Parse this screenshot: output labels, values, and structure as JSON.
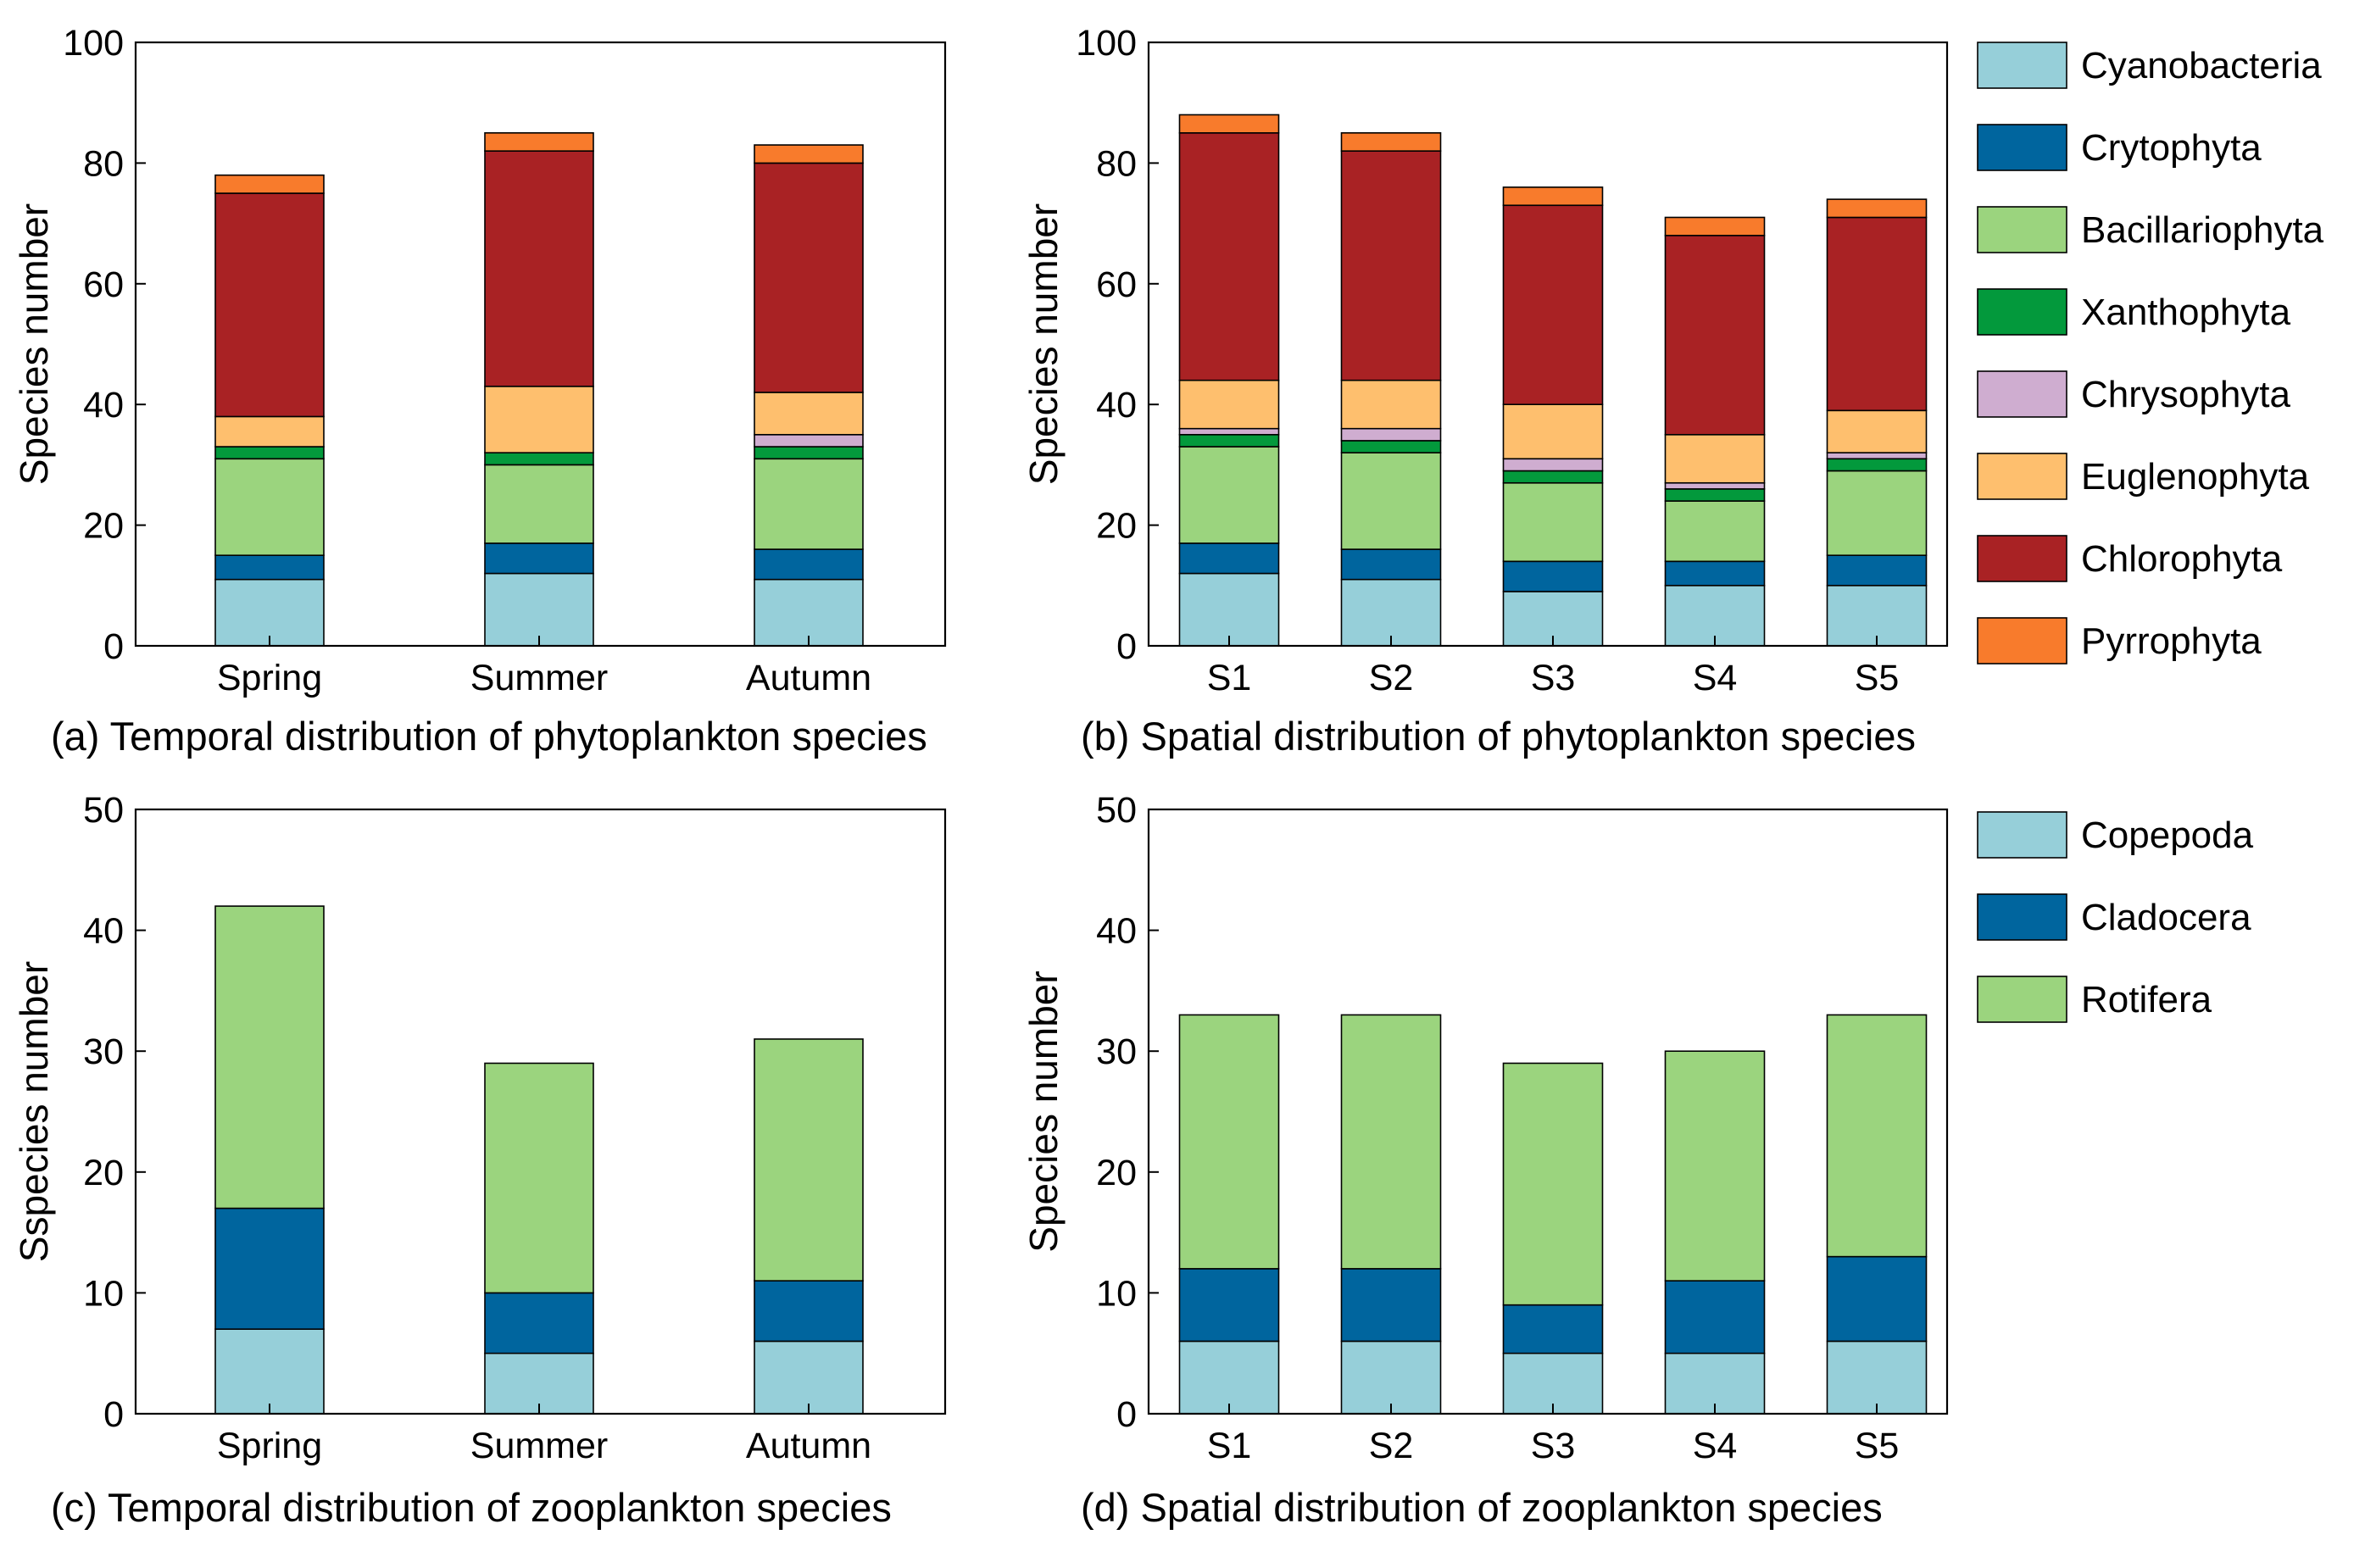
{
  "figure_panels": [
    "a",
    "b",
    "c",
    "d"
  ],
  "chart_data": [
    {
      "id": "a",
      "type": "bar",
      "stacked": true,
      "caption": "(a) Temporal distribution of phytoplankton species",
      "xlabel": "",
      "ylabel": "Species number",
      "ylim": [
        0,
        100
      ],
      "yticks": [
        0,
        20,
        40,
        60,
        80,
        100
      ],
      "categories": [
        "Spring",
        "Summer",
        "Autumn"
      ],
      "series": [
        {
          "name": "Cyanobacteria",
          "color": "#96CFD9",
          "values": [
            11,
            12,
            11
          ]
        },
        {
          "name": "Crytophyta",
          "color": "#00659E",
          "values": [
            4,
            5,
            5
          ]
        },
        {
          "name": "Bacillariophyta",
          "color": "#9BD47E",
          "values": [
            16,
            13,
            15
          ]
        },
        {
          "name": "Xanthophyta",
          "color": "#03993C",
          "values": [
            2,
            2,
            2
          ]
        },
        {
          "name": "Chrysophyta",
          "color": "#CFADD0",
          "values": [
            0,
            0,
            2
          ]
        },
        {
          "name": "Euglenophyta",
          "color": "#FEBF6E",
          "values": [
            5,
            11,
            7
          ]
        },
        {
          "name": "Chlorophyta",
          "color": "#A92224",
          "values": [
            37,
            39,
            38
          ]
        },
        {
          "name": "Pyrrophyta",
          "color": "#F87B2C",
          "values": [
            3,
            3,
            3
          ]
        }
      ],
      "legend": "none"
    },
    {
      "id": "b",
      "type": "bar",
      "stacked": true,
      "caption": "(b) Spatial distribution of phytoplankton species",
      "xlabel": "",
      "ylabel": "Species number",
      "ylim": [
        0,
        100
      ],
      "yticks": [
        0,
        20,
        40,
        60,
        80,
        100
      ],
      "categories": [
        "S1",
        "S2",
        "S3",
        "S4",
        "S5"
      ],
      "series": [
        {
          "name": "Cyanobacteria",
          "color": "#96CFD9",
          "values": [
            12,
            11,
            9,
            10,
            10
          ]
        },
        {
          "name": "Crytophyta",
          "color": "#00659E",
          "values": [
            5,
            5,
            5,
            4,
            5
          ]
        },
        {
          "name": "Bacillariophyta",
          "color": "#9BD47E",
          "values": [
            16,
            16,
            13,
            10,
            14
          ]
        },
        {
          "name": "Xanthophyta",
          "color": "#03993C",
          "values": [
            2,
            2,
            2,
            2,
            2
          ]
        },
        {
          "name": "Chrysophyta",
          "color": "#CFADD0",
          "values": [
            1,
            2,
            2,
            1,
            1
          ]
        },
        {
          "name": "Euglenophyta",
          "color": "#FEBF6E",
          "values": [
            8,
            8,
            9,
            8,
            7
          ]
        },
        {
          "name": "Chlorophyta",
          "color": "#A92224",
          "values": [
            41,
            38,
            33,
            33,
            32
          ]
        },
        {
          "name": "Pyrrophyta",
          "color": "#F87B2C",
          "values": [
            3,
            3,
            3,
            3,
            3
          ]
        }
      ],
      "legend": "right"
    },
    {
      "id": "c",
      "type": "bar",
      "stacked": true,
      "caption": "(c) Temporal distribution of zooplankton species",
      "xlabel": "",
      "ylabel": "Sspecies number",
      "ylim": [
        0,
        50
      ],
      "yticks": [
        0,
        10,
        20,
        30,
        40,
        50
      ],
      "categories": [
        "Spring",
        "Summer",
        "Autumn"
      ],
      "series": [
        {
          "name": "Copepoda",
          "color": "#96CFD9",
          "values": [
            7,
            5,
            6
          ]
        },
        {
          "name": "Cladocera",
          "color": "#00659E",
          "values": [
            10,
            5,
            5
          ]
        },
        {
          "name": "Rotifera",
          "color": "#9BD47E",
          "values": [
            25,
            19,
            20
          ]
        }
      ],
      "legend": "none"
    },
    {
      "id": "d",
      "type": "bar",
      "stacked": true,
      "caption": "(d) Spatial distribution of zooplankton species",
      "xlabel": "",
      "ylabel": "Species number",
      "ylim": [
        0,
        50
      ],
      "yticks": [
        0,
        10,
        20,
        30,
        40,
        50
      ],
      "categories": [
        "S1",
        "S2",
        "S3",
        "S4",
        "S5"
      ],
      "series": [
        {
          "name": "Copepoda",
          "color": "#96CFD9",
          "values": [
            6,
            6,
            5,
            5,
            6
          ]
        },
        {
          "name": "Cladocera",
          "color": "#00659E",
          "values": [
            6,
            6,
            4,
            6,
            7
          ]
        },
        {
          "name": "Rotifera",
          "color": "#9BD47E",
          "values": [
            21,
            21,
            20,
            19,
            20
          ]
        }
      ],
      "legend": "right"
    }
  ]
}
